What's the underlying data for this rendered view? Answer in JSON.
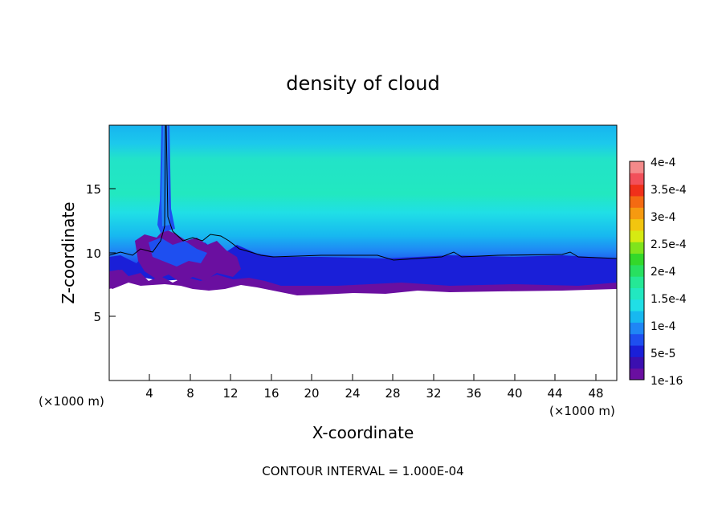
{
  "chart_data": {
    "type": "heatmap",
    "title": "density of cloud",
    "xlabel": "X-coordinate",
    "ylabel": "Z-coordinate",
    "x_unit": "(×1000 m)",
    "y_unit": "(×1000 m)",
    "xlim": [
      0,
      50
    ],
    "ylim": [
      0,
      20
    ],
    "x_ticks": [
      "4",
      "8",
      "12",
      "16",
      "20",
      "24",
      "28",
      "32",
      "36",
      "40",
      "44",
      "48"
    ],
    "y_ticks": [
      "5",
      "10",
      "15"
    ],
    "footer": "CONTOUR INTERVAL = 1.000E-04",
    "grid": false,
    "colorbar": {
      "placement": "right",
      "labels": [
        "1e-16",
        "5e-5",
        "1e-4",
        "1.5e-4",
        "2e-4",
        "2.5e-4",
        "3e-4",
        "3.5e-4",
        "4e-4"
      ],
      "colors": [
        "#6a0fa0",
        "#3b0fb0",
        "#1a1fd8",
        "#1e4ff0",
        "#1f86f5",
        "#17b8f0",
        "#20dfe6",
        "#22e8c0",
        "#25e896",
        "#28e060",
        "#33d82a",
        "#7fe41c",
        "#d6ea12",
        "#f2c50f",
        "#f69a10",
        "#f46a12",
        "#f0301a",
        "#f2505a",
        "#f48a8a"
      ]
    },
    "cloud_layers": [
      {
        "z_range": [
          16.2,
          20.0
        ],
        "value": "7e-5",
        "color": "#17b8f0"
      },
      {
        "z_range": [
          12.5,
          16.2
        ],
        "value": "1.4e-4",
        "color": "#22e8c0"
      },
      {
        "z_range": [
          10.5,
          12.5
        ],
        "value": "1e-4",
        "color": "#20dfe6"
      },
      {
        "z_range": [
          9.7,
          10.5
        ],
        "value": "5e-5",
        "color": "#1f86f5"
      },
      {
        "z_range": [
          8.0,
          9.7
        ],
        "value": "2e-5",
        "color": "#1a1fd8"
      },
      {
        "z_range": [
          7.0,
          8.0
        ],
        "value": "1e-16",
        "color": "#6a0fa0"
      }
    ],
    "updraft": {
      "x": 5.5,
      "z_base": 12.0,
      "z_top": 20.0
    }
  }
}
